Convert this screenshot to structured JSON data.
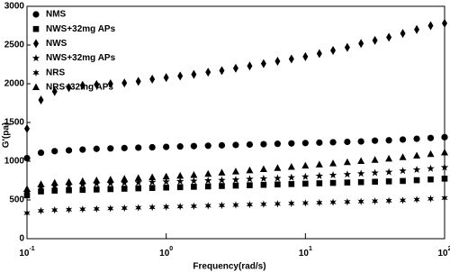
{
  "chart_data": {
    "type": "scatter",
    "x_label": "Frequency(rad/s)",
    "y_label": "G'(pa)",
    "x_scale": "log",
    "legend": "upper left",
    "xlim": [
      0.1,
      100
    ],
    "ylim": [
      0,
      3000
    ],
    "xticks": [
      {
        "value": 0.1,
        "label": "10",
        "exp": "-1"
      },
      {
        "value": 1,
        "label": "10",
        "exp": "0"
      },
      {
        "value": 10,
        "label": "10",
        "exp": "1"
      },
      {
        "value": 100,
        "label": "10",
        "exp": "2"
      }
    ],
    "yticks": [
      0,
      500,
      1000,
      1500,
      2000,
      2500,
      3000
    ],
    "x": [
      0.1,
      0.126,
      0.158,
      0.2,
      0.251,
      0.316,
      0.398,
      0.501,
      0.631,
      0.794,
      1,
      1.26,
      1.58,
      2,
      2.51,
      3.16,
      3.98,
      5.01,
      6.31,
      7.94,
      10,
      12.6,
      15.8,
      20,
      25.1,
      31.6,
      39.8,
      50.1,
      63.1,
      79.4,
      100
    ],
    "series": [
      {
        "name": "NMS",
        "marker": "circle",
        "color": "#000000",
        "values": [
          1040,
          1110,
          1130,
          1140,
          1150,
          1160,
          1165,
          1170,
          1175,
          1180,
          1185,
          1190,
          1195,
          1200,
          1205,
          1210,
          1215,
          1220,
          1225,
          1230,
          1235,
          1240,
          1245,
          1250,
          1255,
          1265,
          1270,
          1280,
          1290,
          1300,
          1310
        ]
      },
      {
        "name": "NWS+32mg APs",
        "marker": "square",
        "color": "#000000",
        "values": [
          560,
          610,
          620,
          625,
          630,
          635,
          640,
          645,
          650,
          655,
          660,
          665,
          670,
          675,
          680,
          685,
          690,
          695,
          700,
          705,
          710,
          715,
          720,
          725,
          730,
          735,
          740,
          745,
          755,
          765,
          775
        ]
      },
      {
        "name": "NWS",
        "marker": "diamond",
        "color": "#000000",
        "values": [
          1420,
          1790,
          1900,
          1950,
          1980,
          1990,
          2000,
          2010,
          2030,
          2060,
          2080,
          2100,
          2120,
          2150,
          2170,
          2200,
          2230,
          2260,
          2290,
          2320,
          2350,
          2390,
          2430,
          2470,
          2520,
          2560,
          2600,
          2650,
          2700,
          2750,
          2780
        ]
      },
      {
        "name": "NWS+32mg APs",
        "marker": "star",
        "color": "#000000",
        "values": [
          600,
          660,
          680,
          690,
          700,
          710,
          715,
          720,
          725,
          730,
          735,
          740,
          745,
          750,
          755,
          760,
          770,
          775,
          780,
          790,
          800,
          810,
          820,
          830,
          840,
          850,
          860,
          875,
          890,
          905,
          920
        ]
      },
      {
        "name": "NRS",
        "marker": "asterisk",
        "color": "#000000",
        "values": [
          330,
          360,
          370,
          375,
          380,
          385,
          390,
          395,
          400,
          405,
          410,
          415,
          420,
          425,
          430,
          435,
          440,
          445,
          450,
          455,
          460,
          465,
          470,
          475,
          480,
          485,
          490,
          495,
          505,
          515,
          525
        ]
      },
      {
        "name": "NRS+32mg APs",
        "marker": "triangle",
        "color": "#000000",
        "values": [
          640,
          700,
          720,
          730,
          740,
          750,
          760,
          770,
          780,
          790,
          800,
          810,
          820,
          835,
          850,
          865,
          880,
          895,
          910,
          925,
          940,
          955,
          970,
          985,
          1000,
          1015,
          1030,
          1050,
          1070,
          1090,
          1110
        ]
      }
    ]
  }
}
